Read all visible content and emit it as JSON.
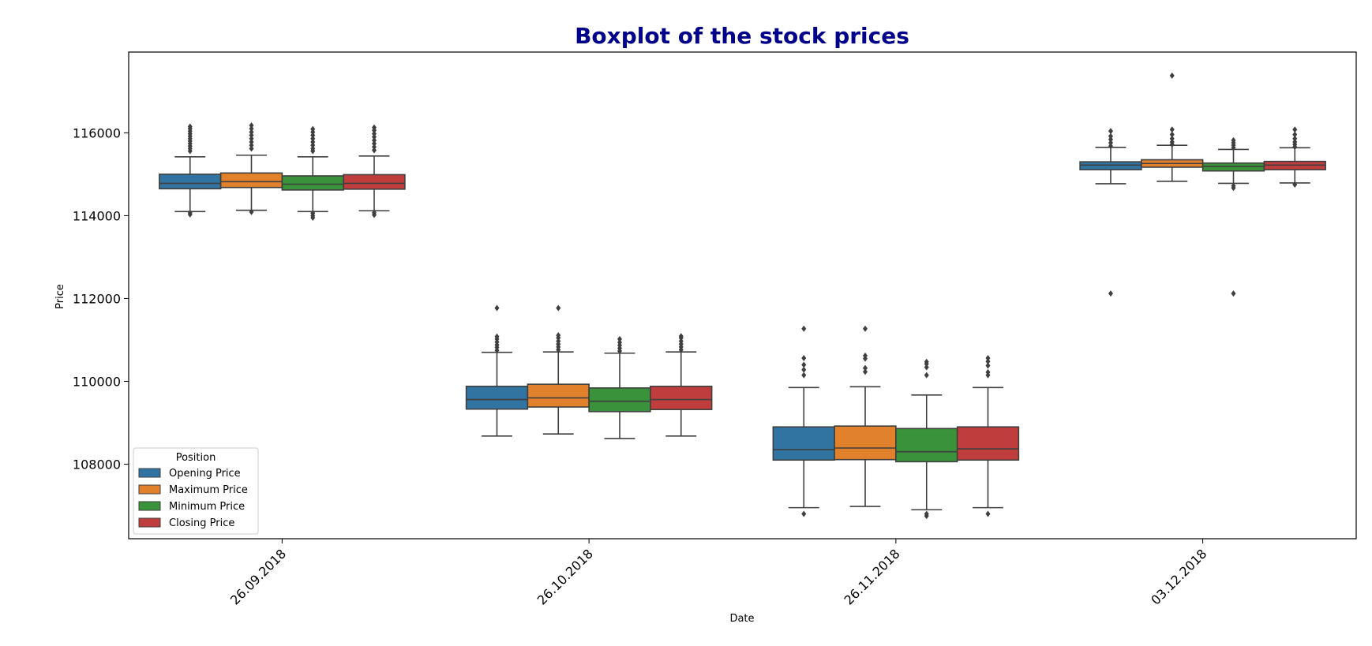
{
  "chart_data": {
    "type": "box",
    "title": "Boxplot of the stock prices",
    "xlabel": "Date",
    "ylabel": "Price",
    "categories": [
      "26.09.2018",
      "26.10.2018",
      "26.11.2018",
      "03.12.2018"
    ],
    "ylim": [
      106200,
      117950
    ],
    "yticks": [
      108000,
      110000,
      112000,
      114000,
      116000
    ],
    "ytick_labels": [
      "108000",
      "110000",
      "112000",
      "114000",
      "116000"
    ],
    "grid": false,
    "legend": {
      "title": "Position",
      "placement": "lower-left"
    },
    "title_color": "#00008b",
    "box_edge_color": "#3f3f3f",
    "series": [
      {
        "name": "Opening Price",
        "color": "#3274a1",
        "boxes": [
          {
            "whisker_low": 114100,
            "q1": 114650,
            "median": 114780,
            "q3": 115000,
            "whisker_high": 115420,
            "outliers": [
              114030,
              114070,
              115560,
              115620,
              115680,
              115740,
              115800,
              115860,
              115920,
              115980,
              116040,
              116100,
              116150
            ]
          },
          {
            "whisker_low": 108680,
            "q1": 109330,
            "median": 109560,
            "q3": 109880,
            "whisker_high": 110700,
            "outliers": [
              110750,
              110820,
              110880,
              110950,
              111020,
              111080,
              111770
            ]
          },
          {
            "whisker_low": 106950,
            "q1": 108100,
            "median": 108350,
            "q3": 108900,
            "whisker_high": 109850,
            "outliers": [
              106800,
              110150,
              110280,
              110400,
              110560,
              111270
            ]
          },
          {
            "whisker_low": 114770,
            "q1": 115110,
            "median": 115220,
            "q3": 115300,
            "whisker_high": 115650,
            "outliers": [
              112120,
              115680,
              115760,
              115840,
              115920,
              116040
            ]
          }
        ]
      },
      {
        "name": "Maximum Price",
        "color": "#e1812c",
        "boxes": [
          {
            "whisker_low": 114130,
            "q1": 114680,
            "median": 114820,
            "q3": 115030,
            "whisker_high": 115460,
            "outliers": [
              114090,
              115620,
              115700,
              115780,
              115860,
              115940,
              116020,
              116100,
              116180
            ]
          },
          {
            "whisker_low": 108730,
            "q1": 109380,
            "median": 109600,
            "q3": 109930,
            "whisker_high": 110710,
            "outliers": [
              110760,
              110830,
              110900,
              110970,
              111050,
              111110,
              111770
            ]
          },
          {
            "whisker_low": 106980,
            "q1": 108110,
            "median": 108390,
            "q3": 108920,
            "whisker_high": 109870,
            "outliers": [
              110230,
              110320,
              110550,
              110620,
              111270
            ]
          },
          {
            "whisker_low": 114830,
            "q1": 115170,
            "median": 115260,
            "q3": 115350,
            "whisker_high": 115700,
            "outliers": [
              115720,
              115780,
              115860,
              115960,
              116080,
              117380
            ]
          }
        ]
      },
      {
        "name": "Minimum Price",
        "color": "#3a923a",
        "boxes": [
          {
            "whisker_low": 114100,
            "q1": 114620,
            "median": 114760,
            "q3": 114960,
            "whisker_high": 115420,
            "outliers": [
              113950,
              114000,
              114060,
              115560,
              115620,
              115700,
              115780,
              115860,
              115940,
              116020,
              116090
            ]
          },
          {
            "whisker_low": 108620,
            "q1": 109270,
            "median": 109520,
            "q3": 109840,
            "whisker_high": 110680,
            "outliers": [
              110730,
              110800,
              110870,
              110940,
              111020
            ]
          },
          {
            "whisker_low": 106900,
            "q1": 108060,
            "median": 108300,
            "q3": 108860,
            "whisker_high": 109670,
            "outliers": [
              106750,
              106800,
              110150,
              110340,
              110420,
              110470
            ]
          },
          {
            "whisker_low": 114780,
            "q1": 115080,
            "median": 115190,
            "q3": 115270,
            "whisker_high": 115600,
            "outliers": [
              112120,
              114670,
              114720,
              115640,
              115700,
              115760,
              115820
            ]
          }
        ]
      },
      {
        "name": "Closing Price",
        "color": "#c03d3e",
        "boxes": [
          {
            "whisker_low": 114120,
            "q1": 114640,
            "median": 114780,
            "q3": 114990,
            "whisker_high": 115440,
            "outliers": [
              114020,
              114070,
              115580,
              115660,
              115740,
              115820,
              115900,
              115980,
              116060,
              116130
            ]
          },
          {
            "whisker_low": 108680,
            "q1": 109320,
            "median": 109560,
            "q3": 109880,
            "whisker_high": 110710,
            "outliers": [
              110760,
              110830,
              110900,
              110970,
              111050,
              111090
            ]
          },
          {
            "whisker_low": 106950,
            "q1": 108100,
            "median": 108370,
            "q3": 108900,
            "whisker_high": 109850,
            "outliers": [
              106800,
              110150,
              110220,
              110380,
              110480,
              110560
            ]
          },
          {
            "whisker_low": 114790,
            "q1": 115110,
            "median": 115220,
            "q3": 115310,
            "whisker_high": 115640,
            "outliers": [
              114750,
              115660,
              115720,
              115780,
              115860,
              115960,
              116080
            ]
          }
        ]
      }
    ]
  }
}
